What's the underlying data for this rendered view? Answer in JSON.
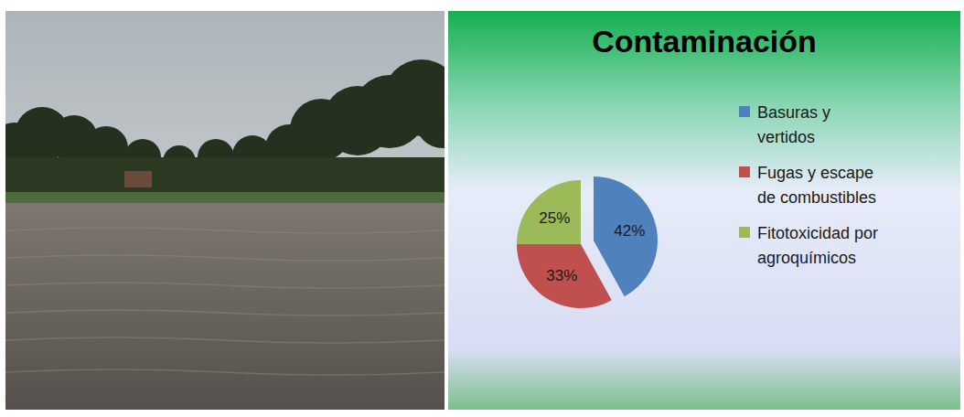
{
  "chart_data": {
    "type": "pie",
    "title": "Contaminación",
    "categories": [
      "Basuras y vertidos",
      "Fugas y escape de combustibles",
      "Fitotoxicidad por agroquímicos"
    ],
    "values": [
      42,
      33,
      25
    ],
    "value_labels": [
      "42%",
      "33%",
      "25%"
    ],
    "colors": [
      "#4f81bd",
      "#c0504d",
      "#9bbb59"
    ],
    "legend": "right",
    "data_labels": true
  }
}
